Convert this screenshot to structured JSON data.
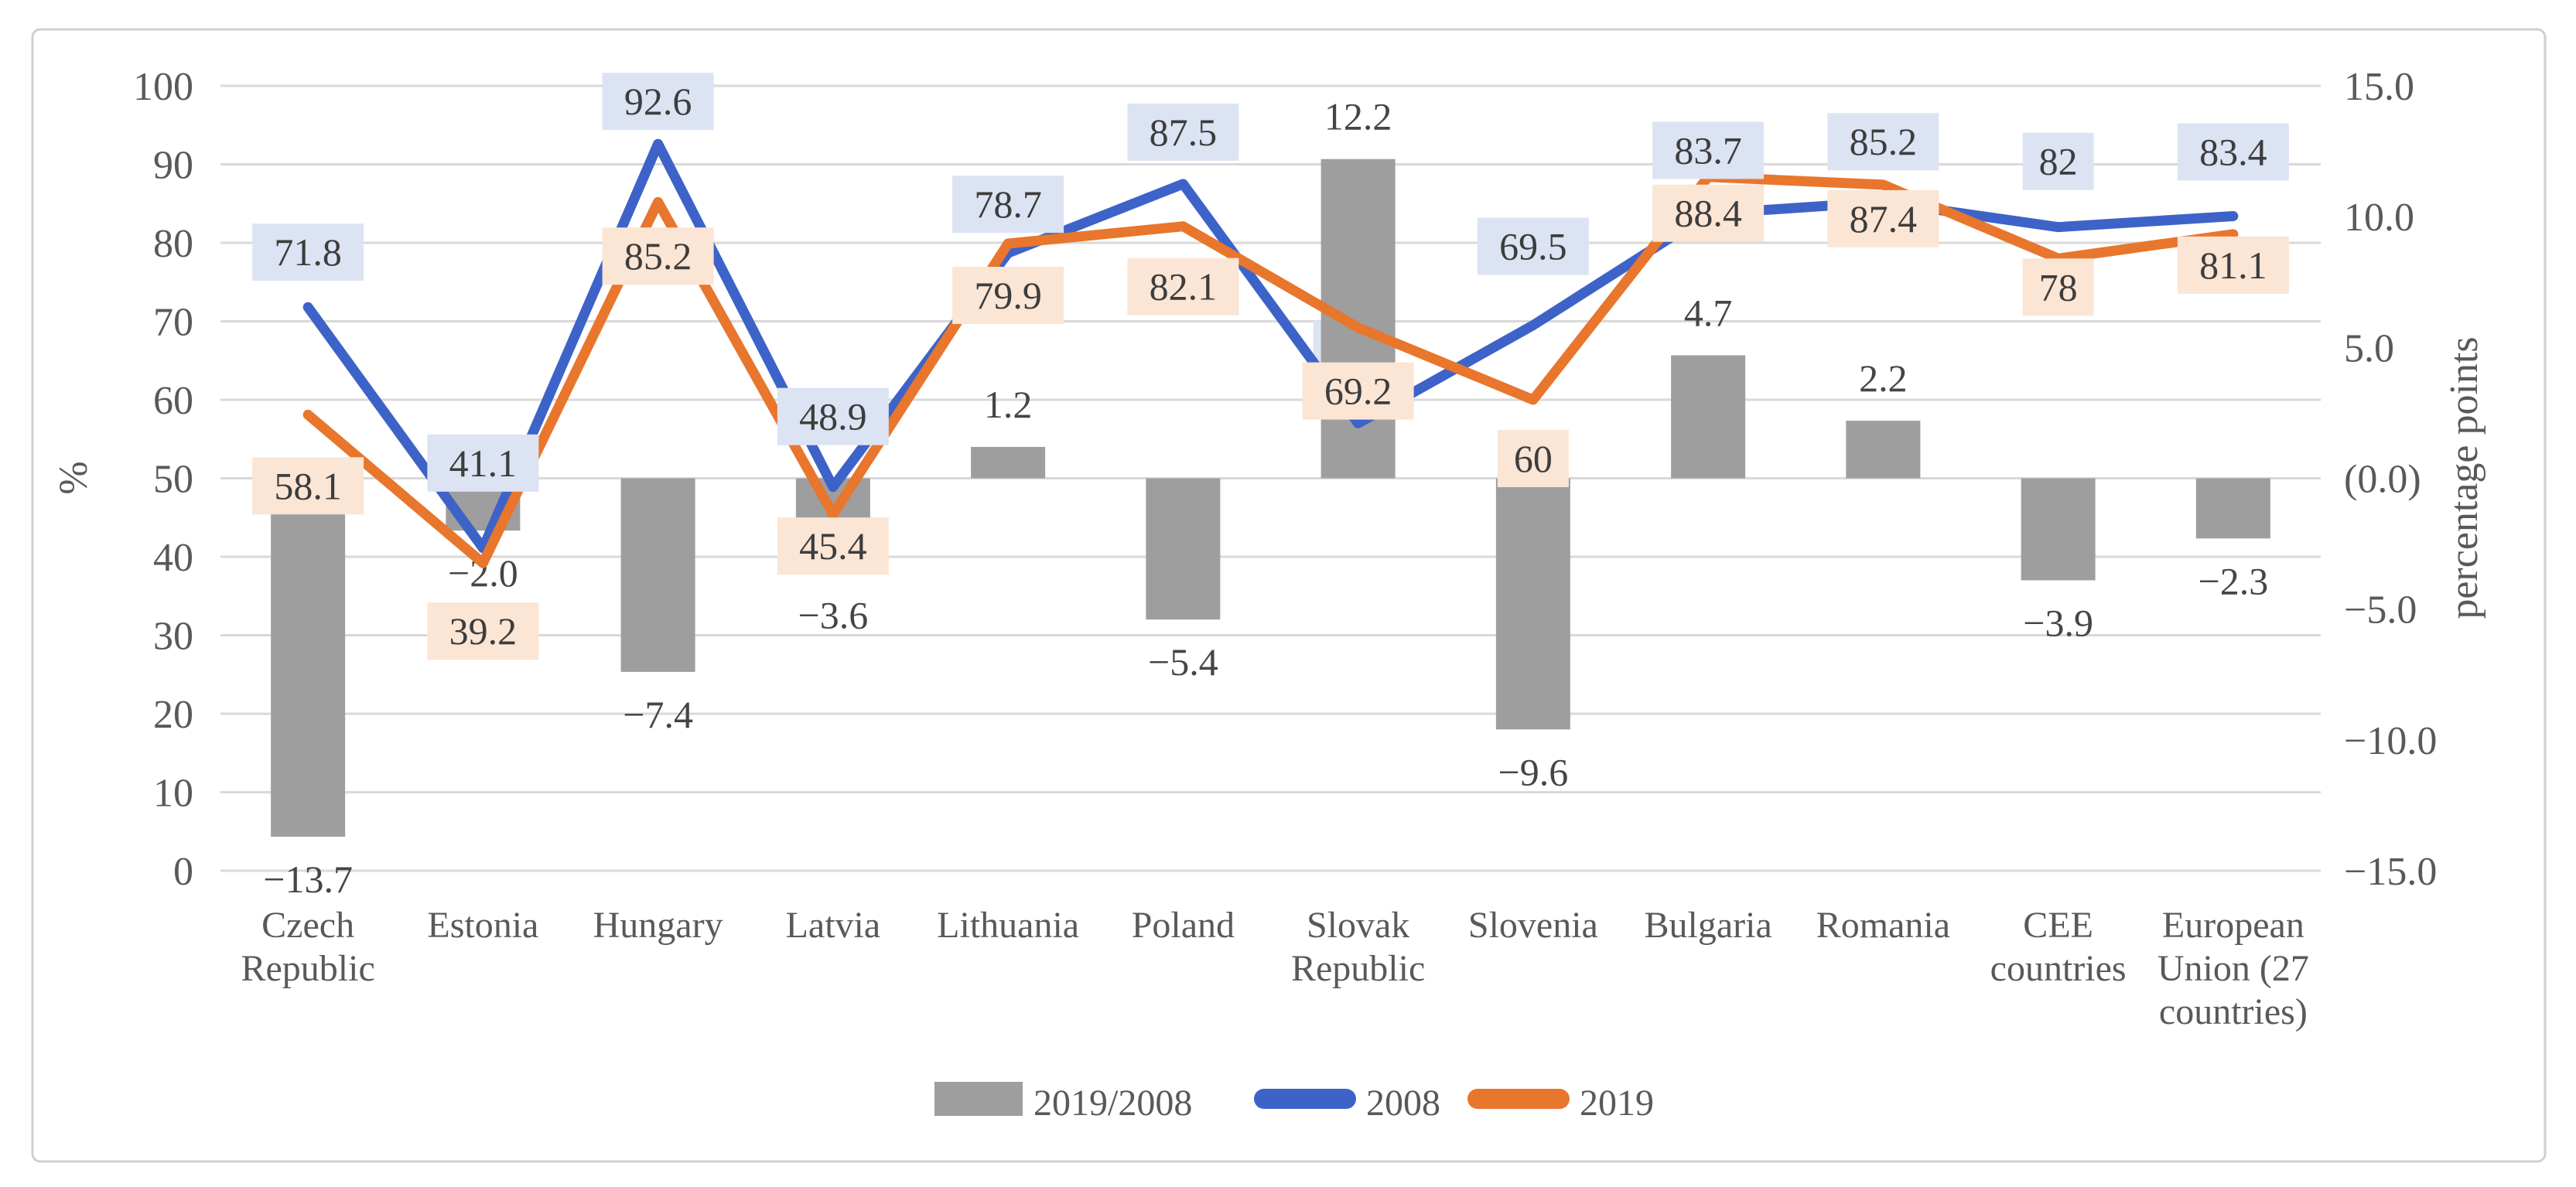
{
  "chart_data": {
    "type": "combo-bar-line",
    "title": "",
    "categories": [
      "Czech Republic",
      "Estonia",
      "Hungary",
      "Latvia",
      "Lithuania",
      "Poland",
      "Slovak Republic",
      "Slovenia",
      "Bulgaria",
      "Romania",
      "CEE countries",
      "European Union (27 countries)"
    ],
    "series": [
      {
        "name": "2019/2008",
        "type": "bar",
        "axis": "right",
        "values": [
          -13.7,
          -2.0,
          -7.4,
          -3.6,
          1.2,
          -5.4,
          12.2,
          -9.6,
          4.7,
          2.2,
          -3.9,
          -2.3
        ],
        "labels": [
          "−13.7",
          "−2.0",
          "−7.4",
          "−3.6",
          "1.2",
          "−5.4",
          "12.2",
          "−9.6",
          "4.7",
          "2.2",
          "−3.9",
          "−2.3"
        ]
      },
      {
        "name": "2008",
        "type": "line",
        "axis": "left",
        "values": [
          71.8,
          41.1,
          92.6,
          48.9,
          78.7,
          87.5,
          57,
          69.5,
          83.7,
          85.2,
          82,
          83.4
        ],
        "labels": [
          "71.8",
          "41.1",
          "92.6",
          "48.9",
          "78.7",
          "87.5",
          "57",
          "69.5",
          "83.7",
          "85.2",
          "82",
          "83.4"
        ]
      },
      {
        "name": "2019",
        "type": "line",
        "axis": "left",
        "values": [
          58.1,
          39.2,
          85.2,
          45.4,
          79.9,
          82.1,
          69.2,
          60,
          88.4,
          87.4,
          78,
          81.1
        ],
        "labels": [
          "58.1",
          "39.2",
          "85.2",
          "45.4",
          "79.9",
          "82.1",
          "69.2",
          "60",
          "88.4",
          "87.4",
          "78",
          "81.1"
        ]
      }
    ],
    "left_axis": {
      "title": "%",
      "min": 0,
      "max": 100,
      "step": 10,
      "tick_labels": [
        "100",
        "90",
        "80",
        "70",
        "60",
        "50",
        "40",
        "30",
        "20",
        "10",
        "0"
      ]
    },
    "right_axis": {
      "title": "percentage points",
      "min": -15,
      "max": 15,
      "step": 5,
      "tick_values": [
        15,
        10,
        5,
        0,
        -5,
        -10,
        -15
      ],
      "tick_labels": [
        "15.0",
        "10.0",
        "5.0",
        "(0.0)",
        "−5.0",
        "−10.0",
        "−15.0"
      ]
    },
    "legend": {
      "position": "bottom",
      "items": [
        "2019/2008",
        "2008",
        "2019"
      ]
    },
    "grid": true
  },
  "colors": {
    "bar": "#9E9E9E",
    "line_2008": "#3E63C8",
    "line_2019": "#E8762D",
    "label_bg_2008": "#DCE3F3",
    "label_bg_2019": "#FBE5D5",
    "grid": "#D9D9D9",
    "axis_text": "#595959",
    "label_text": "#3D3D3D",
    "border": "#CFCFCF",
    "background": "#FFFFFF"
  }
}
